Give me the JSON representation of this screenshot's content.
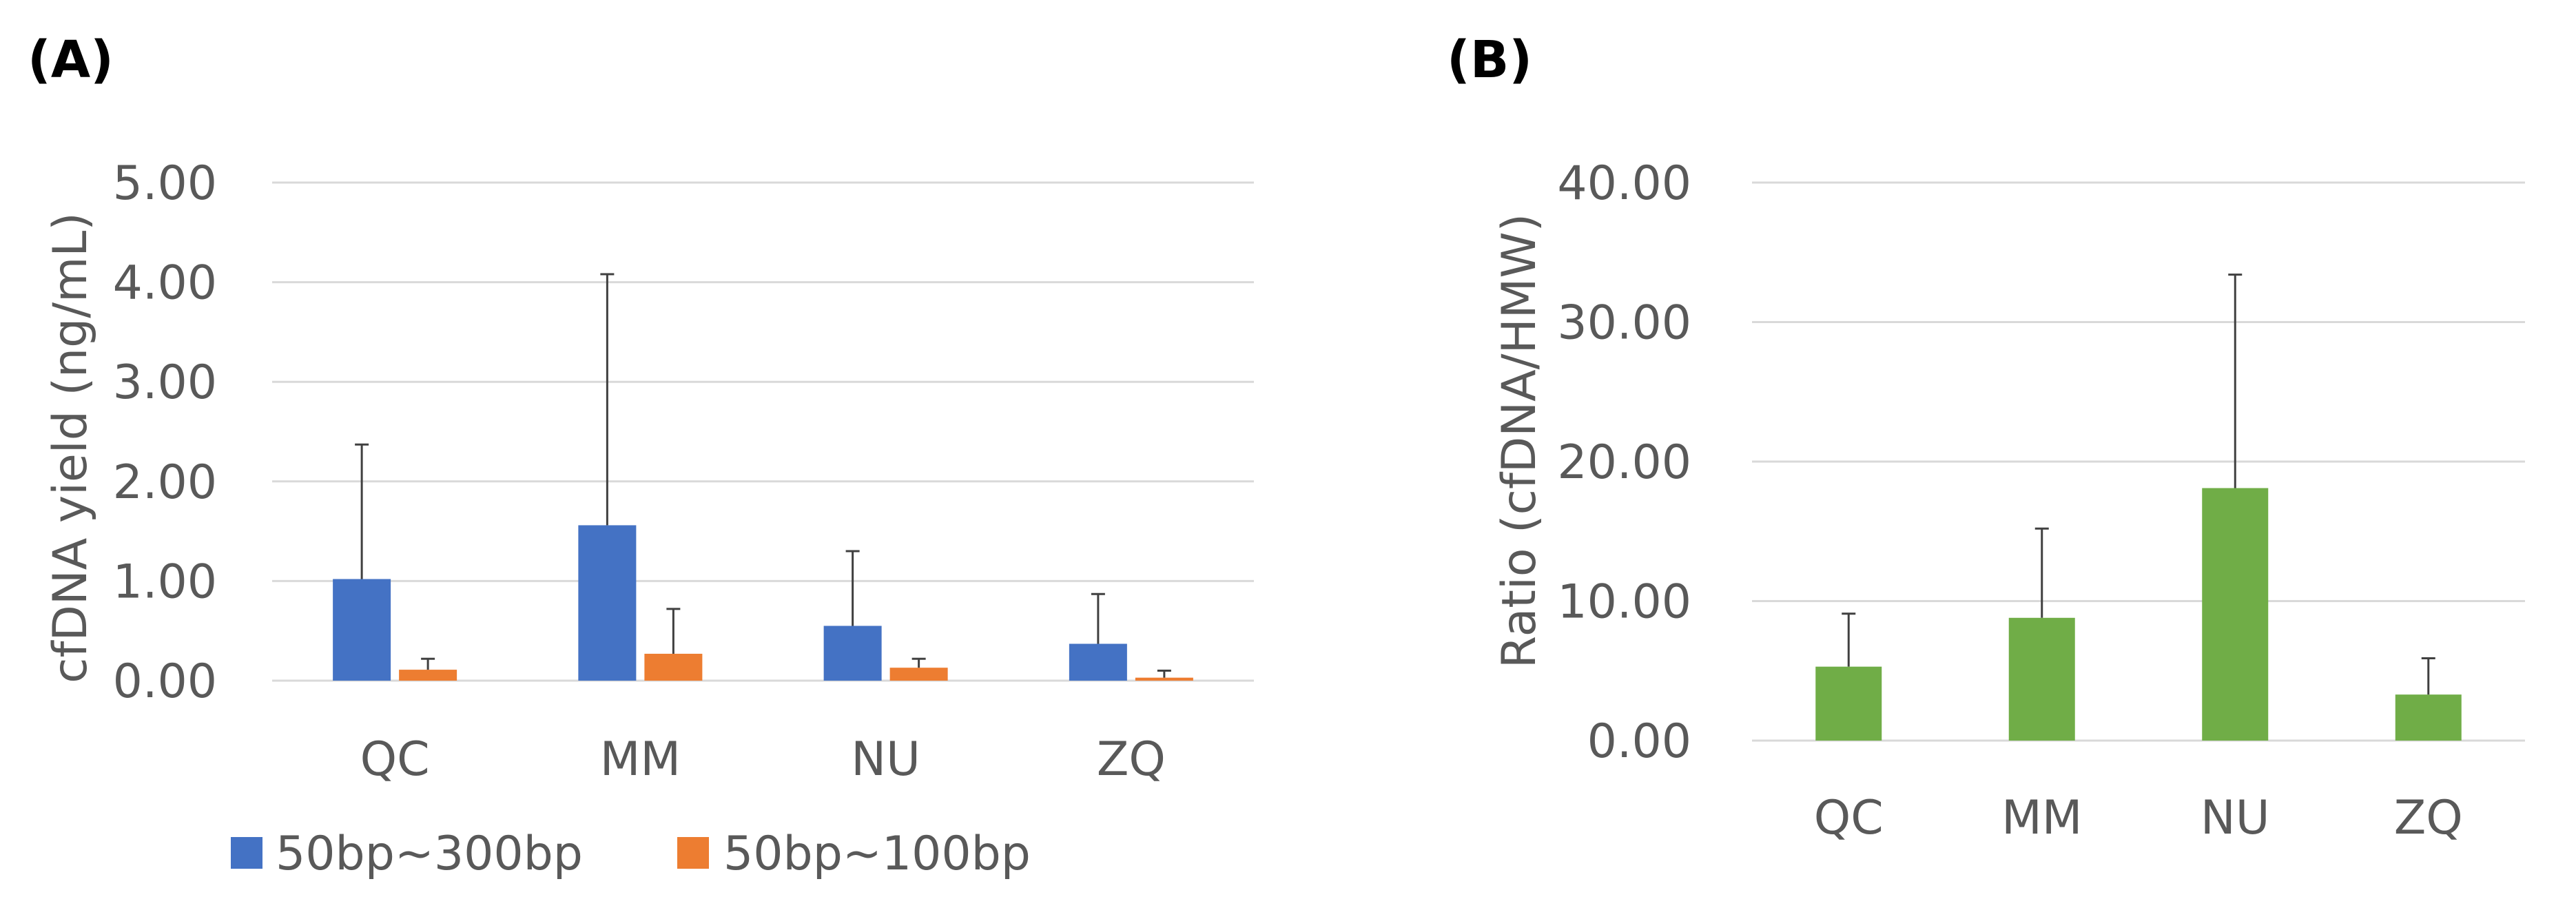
{
  "figure": {
    "panel_a_label": "(A)",
    "panel_b_label": "(B)"
  },
  "colors": {
    "series_50_300": "#4472C4",
    "series_50_100": "#ED7D31",
    "ratio": "#70AD47",
    "grid": "#D9D9D9",
    "text": "#595959",
    "error_bar": "#404040"
  },
  "chart_data": [
    {
      "type": "bar",
      "panel": "(A)",
      "title": "",
      "xlabel": "",
      "ylabel": "cfDNA yield (ng/mL)",
      "categories": [
        "QC",
        "MM",
        "NU",
        "ZQ"
      ],
      "ylim": [
        0,
        5
      ],
      "yticks": [
        0,
        1,
        2,
        3,
        4,
        5
      ],
      "ytick_labels": [
        "0.00",
        "1.00",
        "2.00",
        "3.00",
        "4.00",
        "5.00"
      ],
      "grid": true,
      "legend": "bottom",
      "series": [
        {
          "name": "50bp~300bp",
          "color": "#4472C4",
          "values": [
            1.02,
            1.56,
            0.55,
            0.37
          ],
          "error_upper": [
            1.35,
            2.52,
            0.75,
            0.5
          ]
        },
        {
          "name": "50bp~100bp",
          "color": "#ED7D31",
          "values": [
            0.11,
            0.27,
            0.13,
            0.03
          ],
          "error_upper": [
            0.11,
            0.45,
            0.09,
            0.07
          ]
        }
      ]
    },
    {
      "type": "bar",
      "panel": "(B)",
      "title": "",
      "xlabel": "",
      "ylabel": "Ratio (cfDNA/HMW)",
      "categories": [
        "QC",
        "MM",
        "NU",
        "ZQ"
      ],
      "ylim": [
        0,
        40
      ],
      "yticks": [
        0,
        10,
        20,
        30,
        40
      ],
      "ytick_labels": [
        "0.00",
        "10.00",
        "20.00",
        "30.00",
        "40.00"
      ],
      "grid": true,
      "legend": "none",
      "series": [
        {
          "color": "#70AD47",
          "values": [
            5.3,
            8.8,
            18.1,
            3.3
          ],
          "error_upper": [
            3.8,
            6.4,
            15.3,
            2.6
          ]
        }
      ]
    }
  ]
}
